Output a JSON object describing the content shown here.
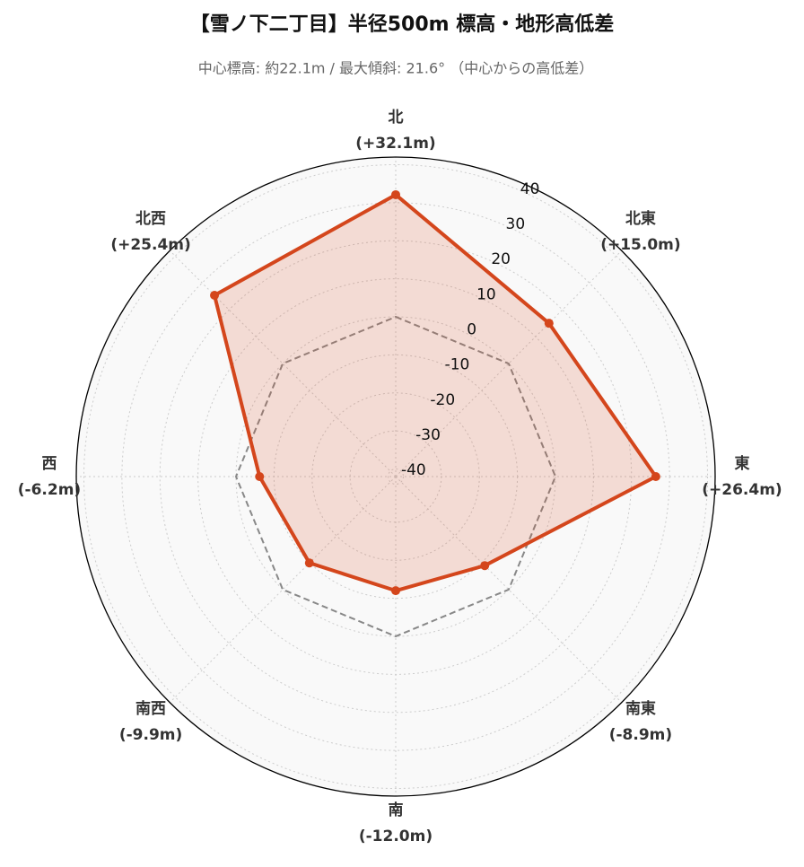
{
  "chart_data": {
    "type": "radar",
    "title": "【雪ノ下二丁目】半径500m 標高・地形高低差",
    "subtitle": "中心標高: 約22.1m / 最大傾斜: 21.6° （中心からの高低差）",
    "categories": [
      "北",
      "北東",
      "東",
      "南東",
      "南",
      "南西",
      "西",
      "北西"
    ],
    "values": [
      32.1,
      15.0,
      26.4,
      -8.9,
      -12.0,
      -9.9,
      -6.2,
      25.4
    ],
    "value_labels": [
      "(+32.1m)",
      "(+15.0m)",
      "(+26.4m)",
      "(-8.9m)",
      "(-12.0m)",
      "(-9.9m)",
      "(-6.2m)",
      "(+25.4m)"
    ],
    "color": "#d4461c",
    "ylim": [
      -42,
      42
    ],
    "yticks": [
      -40,
      -30,
      -20,
      -10,
      0,
      10,
      20,
      30,
      40
    ],
    "grid": true
  }
}
